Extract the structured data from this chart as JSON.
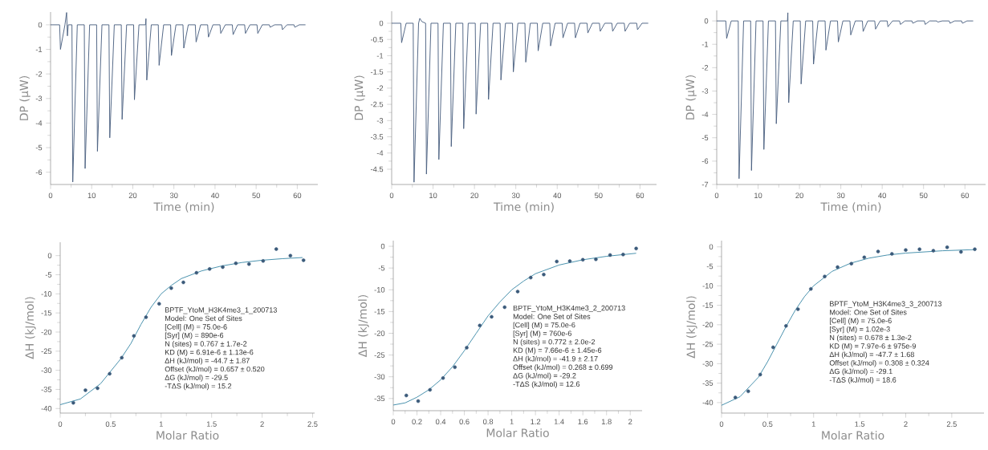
{
  "chart_data": [
    {
      "type": "line",
      "xlabel": "Time (min)",
      "ylabel": "DP (µW)",
      "xlim": [
        0,
        65
      ],
      "ylim": [
        -6.5,
        0.52
      ],
      "xticks": [
        0,
        10,
        20,
        30,
        40,
        50,
        60
      ],
      "yticks": [
        -6,
        -5,
        -4,
        -3,
        -2,
        -1,
        0
      ],
      "series": [
        {
          "color": "#4a6080",
          "x": [
            0,
            2.2,
            2.4,
            3.5,
            3.9,
            4.1,
            4.3,
            5.2,
            5.4,
            6.5,
            8.2,
            8.4,
            9.5,
            11.2,
            11.4,
            12.5,
            14.2,
            14.4,
            15.5,
            17.2,
            17.4,
            18.5,
            20.2,
            20.4,
            21.5,
            23.1,
            23.2,
            23.4,
            24.5,
            26.2,
            26.4,
            27.5,
            29.2,
            29.4,
            30.5,
            32.2,
            32.4,
            33.5,
            35.2,
            35.4,
            36.5,
            38.2,
            38.4,
            39.5,
            41.2,
            41.4,
            42.5,
            44.2,
            44.4,
            45.5,
            47.2,
            47.4,
            48.5,
            50.2,
            50.4,
            51.5,
            53.2,
            53.4,
            54.5,
            56.2,
            56.4,
            57.5,
            59.2,
            59.4,
            60.5,
            62
          ],
          "values": [
            0,
            0,
            -1,
            0,
            0.5,
            -0.45,
            0,
            0,
            -6.4,
            0,
            0,
            -5.85,
            0,
            0,
            -5.15,
            0,
            0,
            -4.6,
            0,
            0,
            -3.85,
            0,
            0,
            -3.05,
            0,
            0,
            0.25,
            -2.25,
            0,
            0,
            -1.65,
            0,
            0,
            -1.25,
            0,
            0,
            -0.95,
            0,
            0,
            -0.7,
            0,
            0,
            -0.5,
            0,
            0,
            -0.35,
            0,
            0,
            -0.4,
            0,
            0,
            -0.35,
            0,
            0,
            -0.35,
            0,
            0,
            -0.1,
            0,
            0,
            -0.2,
            0,
            0,
            -0.1,
            0,
            0
          ]
        }
      ]
    },
    {
      "type": "line",
      "xlabel": "Time (min)",
      "ylabel": "DP (µW)",
      "xlim": [
        0,
        64
      ],
      "ylim": [
        -4.97,
        0.37
      ],
      "xticks": [
        0,
        10,
        20,
        30,
        40,
        50,
        60
      ],
      "yticks": [
        -4.5,
        -4,
        -3.5,
        -3,
        -2.5,
        -2,
        -1.5,
        -1,
        -0.5,
        0
      ],
      "series": [
        {
          "color": "#4a6080",
          "x": [
            0,
            2.2,
            2.4,
            3.5,
            5.2,
            5.4,
            6.5,
            6.8,
            7.3,
            8.2,
            8.4,
            9.5,
            11.2,
            11.4,
            12.5,
            14.2,
            14.4,
            15.5,
            17.2,
            17.4,
            18.5,
            20.2,
            20.4,
            21.5,
            23.2,
            23.4,
            24.5,
            26.2,
            26.4,
            27.5,
            29.2,
            29.4,
            30.5,
            32.2,
            32.4,
            33.5,
            35.2,
            35.4,
            36.5,
            38.2,
            38.4,
            39.5,
            41.2,
            41.4,
            42.5,
            44.2,
            44.4,
            45.5,
            47.2,
            47.4,
            48.5,
            50.2,
            50.4,
            51.5,
            53.2,
            53.4,
            54.5,
            56.2,
            56.4,
            57.5,
            59.2,
            59.4,
            60.5,
            62
          ],
          "values": [
            0,
            0,
            -0.6,
            0,
            0,
            -4.9,
            0,
            0.15,
            0.05,
            0,
            -4.65,
            0,
            0,
            -4.2,
            0,
            0,
            -3.8,
            0,
            0,
            -3.25,
            0,
            0,
            -2.8,
            0,
            0,
            -2.35,
            0,
            0,
            -1.75,
            0,
            0,
            -1.5,
            0,
            0,
            -1.2,
            0,
            0,
            -0.85,
            0,
            0,
            -0.7,
            0,
            0,
            -0.45,
            0,
            0,
            -0.45,
            0,
            0,
            -0.3,
            0,
            0,
            -0.25,
            0,
            0,
            -0.25,
            0,
            0,
            -0.25,
            0,
            0,
            -0.2,
            0,
            0
          ]
        }
      ]
    },
    {
      "type": "line",
      "xlabel": "Time (min)",
      "ylabel": "DP (µW)",
      "xlim": [
        0,
        65
      ],
      "ylim": [
        -7,
        0.45
      ],
      "xticks": [
        0,
        10,
        20,
        30,
        40,
        50,
        60
      ],
      "yticks": [
        -7,
        -6,
        -5,
        -4,
        -3,
        -2,
        -1,
        0
      ],
      "series": [
        {
          "color": "#4a6080",
          "x": [
            0,
            2.2,
            2.4,
            3.5,
            5.2,
            5.4,
            6.5,
            8.2,
            8.4,
            9.5,
            11.2,
            11.4,
            12.5,
            14.2,
            14.4,
            15.5,
            17.1,
            17.2,
            17.4,
            18.5,
            20.2,
            20.4,
            21.5,
            23.2,
            23.4,
            24.5,
            26.2,
            26.4,
            27.5,
            29.2,
            29.4,
            30.5,
            32.2,
            32.4,
            33.5,
            35.2,
            35.4,
            36.5,
            38.2,
            38.4,
            39.5,
            41.2,
            41.4,
            42.5,
            44.2,
            44.4,
            45.5,
            47.2,
            47.4,
            48.5,
            50.2,
            50.4,
            51.5,
            53.2,
            53.4,
            54.5,
            56.2,
            56.4,
            57.5,
            59.2,
            59.4,
            60.5,
            62
          ],
          "values": [
            0,
            0,
            -0.75,
            0,
            0,
            -6.75,
            0,
            0,
            -6.4,
            0,
            0,
            -5.5,
            0,
            0,
            -4.4,
            0,
            0,
            0.35,
            -3.5,
            0,
            0,
            -2.7,
            0,
            0,
            -1.85,
            0,
            0,
            -1.25,
            0,
            0,
            -0.9,
            0,
            0,
            -0.6,
            0,
            0,
            -0.45,
            0,
            0,
            -0.35,
            0,
            0,
            -0.25,
            0,
            0,
            -0.15,
            0,
            0,
            -0.1,
            0,
            0,
            -0.15,
            0,
            0,
            -0.05,
            0,
            0,
            -0.1,
            0,
            0,
            -0.1,
            0,
            0
          ]
        }
      ]
    },
    {
      "type": "scatter",
      "xlabel": "Molar Ratio",
      "ylabel": "ΔH (kJ/mol)",
      "xlim": [
        0,
        2.52
      ],
      "ylim": [
        -41.2,
        3.5
      ],
      "xticks": [
        0,
        0.5,
        1,
        1.5,
        2,
        2.5
      ],
      "yticks": [
        -40,
        -35,
        -30,
        -25,
        -20,
        -15,
        -10,
        -5,
        0
      ],
      "series": [
        {
          "type": "scatter",
          "color": "#3b5a7a",
          "x": [
            0.13,
            0.25,
            0.37,
            0.49,
            0.61,
            0.73,
            0.85,
            0.98,
            1.1,
            1.22,
            1.35,
            1.48,
            1.61,
            1.74,
            1.87,
            2.01,
            2.14,
            2.28,
            2.41
          ],
          "values": [
            -38.5,
            -35.2,
            -34.7,
            -30.9,
            -26.7,
            -21,
            -16.1,
            -12.6,
            -8.5,
            -7,
            -4.5,
            -3.5,
            -3,
            -2,
            -2.2,
            -1.4,
            1.7,
            0,
            -1.2
          ]
        },
        {
          "type": "line",
          "color": "#3d8aa8",
          "x": [
            0,
            0.2,
            0.4,
            0.6,
            0.7,
            0.8,
            0.9,
            1.0,
            1.1,
            1.2,
            1.4,
            1.6,
            1.8,
            2.0,
            2.2,
            2.4
          ],
          "values": [
            -39,
            -37.5,
            -33.5,
            -27,
            -23,
            -18,
            -13.5,
            -10,
            -7.8,
            -6,
            -4,
            -2.7,
            -1.8,
            -1.2,
            -0.8,
            -0.5
          ]
        }
      ],
      "annotations": [
        "BPTF_YtoM_H3K4me3_1_200713",
        "Model: One Set of Sites",
        "[Cell] (M) = 75.0e-6",
        "[Syr] (M) = 890e-6",
        "N (sites) = 0.767 ± 1.7e-2",
        "KD (M) = 6.91e-6 ± 1.13e-6",
        "ΔH (kJ/mol) = -44.7 ± 1.87",
        "Offset (kJ/mol) = 0.657 ± 0.520",
        "ΔG (kJ/mol) = -29.5",
        "-TΔS (kJ/mol) = 15.2"
      ]
    },
    {
      "type": "scatter",
      "xlabel": "Molar Ratio",
      "ylabel": "ΔH (kJ/mol)",
      "xlim": [
        0,
        2.1
      ],
      "ylim": [
        -37.8,
        1.3
      ],
      "xticks": [
        0,
        0.2,
        0.4,
        0.6,
        0.8,
        1,
        1.2,
        1.4,
        1.6,
        1.8,
        2
      ],
      "yticks": [
        -35,
        -30,
        -25,
        -20,
        -15,
        -10,
        -5,
        0
      ],
      "series": [
        {
          "type": "scatter",
          "color": "#3b5a7a",
          "x": [
            0.11,
            0.21,
            0.31,
            0.42,
            0.52,
            0.62,
            0.73,
            0.83,
            0.94,
            1.05,
            1.16,
            1.27,
            1.38,
            1.49,
            1.6,
            1.71,
            1.83,
            1.94,
            2.05
          ],
          "values": [
            -34.3,
            -35.6,
            -33,
            -30.3,
            -27.8,
            -23.3,
            -18.2,
            -16.2,
            -14,
            -10.4,
            -7.2,
            -6.5,
            -3.5,
            -3.4,
            -3.1,
            -3,
            -2,
            -1.9,
            -0.5
          ]
        },
        {
          "type": "line",
          "color": "#3d8aa8",
          "x": [
            0,
            0.1,
            0.2,
            0.3,
            0.4,
            0.5,
            0.6,
            0.7,
            0.8,
            0.9,
            1.0,
            1.1,
            1.2,
            1.4,
            1.6,
            1.8,
            2.05
          ],
          "values": [
            -36.5,
            -36,
            -34.7,
            -33,
            -30.7,
            -27.7,
            -24,
            -20,
            -16,
            -12.8,
            -10,
            -8,
            -6.3,
            -4.3,
            -3.1,
            -2.3,
            -1.6
          ]
        }
      ],
      "annotations": [
        "BPTF_YtoM_H3K4me3_2_200713",
        "Model: One Set of Sites",
        "[Cell] (M) = 75.0e-6",
        "[Syr] (M) = 760e-6",
        "N (sites) = 0.772 ± 2.0e-2",
        "KD (M) = 7.66e-6 ± 1.45e-6",
        "ΔH (kJ/mol) = -41.9 ± 2.17",
        "Offset (kJ/mol) = 0.268 ± 0.699",
        "ΔG (kJ/mol) = -29.2",
        "-TΔS (kJ/mol) = 12.6"
      ]
    },
    {
      "type": "scatter",
      "xlabel": "Molar Ratio",
      "ylabel": "ΔH (kJ/mol)",
      "xlim": [
        0,
        2.85
      ],
      "ylim": [
        -42.7,
        1.6
      ],
      "xticks": [
        0,
        0.5,
        1,
        1.5,
        2,
        2.5
      ],
      "yticks": [
        -40,
        -35,
        -30,
        -25,
        -20,
        -15,
        -10,
        -5,
        0
      ],
      "series": [
        {
          "type": "scatter",
          "color": "#3b5a7a",
          "x": [
            0.15,
            0.29,
            0.42,
            0.56,
            0.7,
            0.83,
            0.97,
            1.12,
            1.26,
            1.41,
            1.55,
            1.7,
            1.85,
            2.0,
            2.15,
            2.3,
            2.45,
            2.6,
            2.75
          ],
          "values": [
            -38.7,
            -37.1,
            -32.8,
            -25.8,
            -20.3,
            -16,
            -10.8,
            -7.6,
            -5.2,
            -4.3,
            -2.7,
            -1.2,
            -1.8,
            -0.8,
            -0.6,
            -1,
            -0.1,
            -1.3,
            -0.6
          ]
        },
        {
          "type": "line",
          "color": "#3d8aa8",
          "x": [
            0,
            0.2,
            0.4,
            0.5,
            0.6,
            0.7,
            0.8,
            0.9,
            1.0,
            1.2,
            1.4,
            1.6,
            1.8,
            2.0,
            2.4,
            2.75
          ],
          "values": [
            -40.7,
            -38.5,
            -33.5,
            -29.5,
            -25,
            -20.5,
            -16.3,
            -12.8,
            -10,
            -6.3,
            -4.2,
            -2.9,
            -2.1,
            -1.6,
            -1,
            -0.7
          ]
        }
      ],
      "annotations": [
        "BPTF_YtoM_H3K4me3_3_200713",
        "Model: One Set of Sites",
        "[Cell] (M) = 75.0e-6",
        "[Syr] (M) = 1.02e-3",
        "N (sites) = 0.678 ± 1.3e-2",
        "KD (M) = 7.97e-6 ± 975e-9",
        "ΔH (kJ/mol) = -47.7 ± 1.68",
        "Offset (kJ/mol) = 0.308 ± 0.324",
        "ΔG (kJ/mol) = -29.1",
        "-TΔS (kJ/mol) = 18.6"
      ]
    }
  ]
}
